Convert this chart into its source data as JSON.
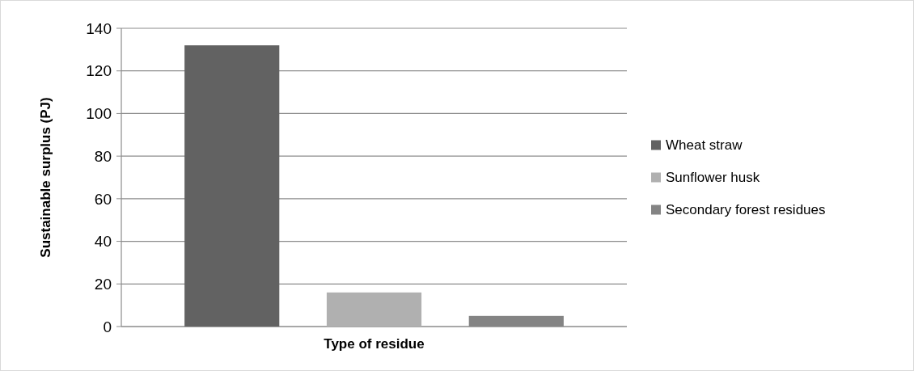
{
  "chart_data": {
    "type": "bar",
    "xlabel": "Type of residue",
    "ylabel": "Sustainable surplus (PJ)",
    "categories": [
      null
    ],
    "series": [
      {
        "name": "Wheat straw",
        "color": "#626262",
        "values": [
          132
        ]
      },
      {
        "name": "Sunflower husk",
        "color": "#b0b0b0",
        "values": [
          16
        ]
      },
      {
        "name": "Secondary forest residues",
        "color": "#848484",
        "values": [
          5
        ]
      }
    ],
    "ylim": [
      0,
      140
    ],
    "yticks": [
      0,
      20,
      40,
      60,
      80,
      100,
      120,
      140
    ],
    "grid": "y",
    "legend": "right"
  }
}
